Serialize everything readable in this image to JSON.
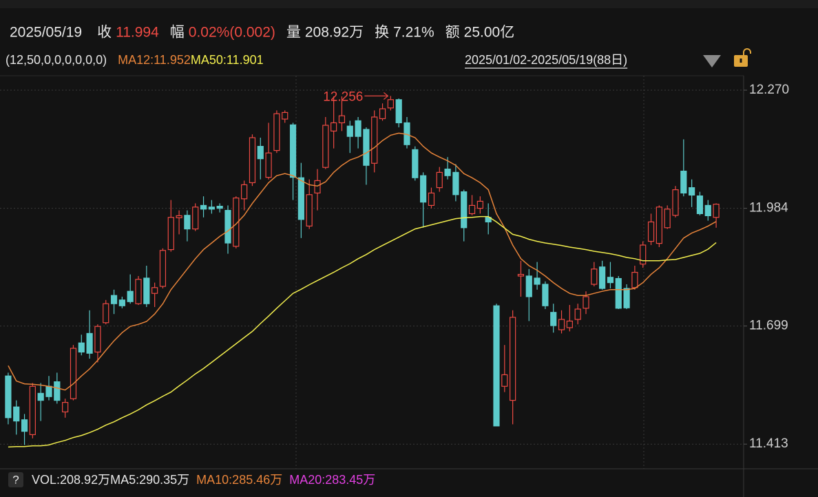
{
  "chart_data": {
    "type": "candlestick",
    "header": {
      "date": "2025/05/19",
      "items": [
        {
          "label": "收",
          "text": "11.994",
          "color": "#ee4a43"
        },
        {
          "label": "幅",
          "text": "0.02%(0.002)",
          "color": "#ee4a43"
        },
        {
          "label": "量",
          "text": "208.92万",
          "color": "#e6e6e6"
        },
        {
          "label": "换",
          "text": "7.21%",
          "color": "#e6e6e6"
        },
        {
          "label": "额",
          "text": "25.00亿",
          "color": "#e6e6e6"
        }
      ]
    },
    "params": "(12,50,0,0,0,0,0,0)",
    "range": "2025/01/02-2025/05/19(88日)",
    "up_color": "#ee4a43",
    "down_color": "#5ccaca",
    "ylim": [
      11.355,
      12.305
    ],
    "yticks": [
      {
        "value": 12.27,
        "label": "12.270"
      },
      11.984,
      11.699,
      11.413
    ],
    "grid": true,
    "open": [
      11.578,
      11.503,
      11.472,
      11.436,
      11.536,
      11.553,
      11.564,
      11.491,
      11.523,
      11.658,
      11.681,
      11.636,
      11.707,
      11.773,
      11.762,
      11.783,
      11.753,
      11.815,
      11.778,
      11.795,
      11.884,
      11.961,
      11.967,
      11.934,
      11.991,
      11.987,
      11.989,
      11.979,
      11.892,
      12.007,
      12.046,
      12.134,
      12.059,
      12.124,
      12.2,
      12.186,
      12.058,
      11.941,
      12.021,
      12.083,
      12.171,
      12.191,
      12.183,
      12.196,
      12.175,
      12.093,
      12.201,
      12.227,
      12.247,
      12.191,
      12.126,
      12.063,
      11.991,
      12.034,
      12.079,
      12.071,
      12.024,
      11.971,
      11.984,
      11.962,
      11.748,
      11.553,
      11.519,
      11.82,
      11.82,
      11.815,
      11.8,
      11.732,
      11.69,
      11.695,
      11.715,
      11.742,
      11.8,
      11.842,
      11.817,
      11.814,
      11.79,
      11.792,
      11.849,
      11.904,
      11.899,
      11.937,
      11.967,
      12.074,
      12.034,
      12.014,
      11.991,
      11.962
    ],
    "high": [
      11.586,
      11.519,
      11.486,
      11.561,
      11.561,
      11.578,
      11.586,
      11.523,
      11.653,
      11.678,
      11.737,
      11.703,
      11.762,
      11.787,
      11.77,
      11.824,
      11.82,
      11.845,
      11.804,
      11.887,
      12.004,
      11.979,
      11.979,
      11.996,
      12.013,
      12.004,
      11.996,
      11.991,
      12.013,
      12.051,
      12.163,
      12.155,
      12.191,
      12.221,
      12.221,
      12.191,
      12.094,
      12.054,
      12.079,
      12.205,
      12.255,
      12.255,
      12.196,
      12.205,
      12.18,
      12.221,
      12.238,
      12.256,
      12.25,
      12.205,
      12.134,
      12.071,
      12.034,
      12.084,
      12.108,
      12.091,
      12.029,
      12.016,
      12.013,
      11.996,
      11.753,
      11.653,
      11.737,
      11.857,
      11.837,
      11.854,
      11.807,
      11.753,
      11.737,
      11.75,
      11.753,
      11.783,
      11.854,
      11.857,
      11.854,
      11.82,
      11.8,
      11.845,
      11.904,
      11.971,
      11.991,
      11.991,
      12.038,
      12.151,
      12.054,
      12.024,
      12.004,
      11.996
    ],
    "low": [
      11.461,
      11.436,
      11.411,
      11.427,
      11.469,
      11.519,
      11.511,
      11.477,
      11.519,
      11.628,
      11.62,
      11.611,
      11.703,
      11.728,
      11.742,
      11.753,
      11.75,
      11.745,
      11.745,
      11.79,
      11.879,
      11.921,
      11.904,
      11.929,
      11.962,
      11.971,
      11.974,
      11.874,
      11.887,
      11.979,
      12.038,
      12.054,
      12.054,
      12.118,
      12.191,
      12.004,
      11.912,
      11.934,
      11.979,
      12.079,
      12.129,
      12.171,
      12.118,
      12.129,
      12.041,
      12.071,
      12.196,
      12.221,
      12.18,
      12.129,
      12.051,
      11.937,
      11.984,
      12.024,
      12.054,
      12.001,
      11.904,
      11.967,
      11.971,
      11.921,
      11.457,
      11.539,
      11.461,
      11.77,
      11.711,
      11.787,
      11.74,
      11.683,
      11.681,
      11.686,
      11.703,
      11.728,
      11.795,
      11.787,
      11.79,
      11.74,
      11.74,
      11.787,
      11.84,
      11.895,
      11.89,
      11.934,
      11.962,
      12.013,
      11.987,
      11.967,
      11.954,
      11.937
    ],
    "close": [
      11.477,
      11.469,
      11.444,
      11.553,
      11.519,
      11.528,
      11.519,
      11.514,
      11.645,
      11.636,
      11.633,
      11.698,
      11.753,
      11.753,
      11.748,
      11.758,
      11.812,
      11.753,
      11.792,
      11.882,
      11.962,
      11.966,
      11.934,
      11.987,
      11.982,
      11.982,
      11.984,
      11.9,
      12.009,
      12.041,
      12.155,
      12.104,
      12.118,
      12.213,
      12.216,
      12.059,
      11.957,
      12.017,
      12.051,
      12.185,
      12.191,
      12.208,
      12.158,
      12.158,
      12.088,
      12.205,
      12.225,
      12.247,
      12.191,
      12.138,
      12.058,
      11.999,
      12.021,
      12.071,
      12.063,
      12.017,
      11.937,
      11.991,
      12.001,
      11.951,
      11.457,
      11.581,
      11.72,
      11.824,
      11.77,
      11.8,
      11.748,
      11.7,
      11.715,
      11.711,
      11.74,
      11.77,
      11.837,
      11.79,
      11.804,
      11.742,
      11.743,
      11.829,
      11.895,
      11.951,
      11.987,
      11.982,
      12.029,
      12.021,
      12.016,
      11.971,
      11.966,
      11.994
    ],
    "high_label": 12.256,
    "series": [
      {
        "name": "MA12:11.952",
        "color": "#e8843a",
        "values": [
          11.603,
          11.566,
          11.559,
          11.558,
          11.556,
          11.553,
          11.549,
          11.544,
          11.559,
          11.578,
          11.595,
          11.616,
          11.64,
          11.663,
          11.683,
          11.698,
          11.703,
          11.71,
          11.728,
          11.753,
          11.787,
          11.812,
          11.837,
          11.862,
          11.884,
          11.9,
          11.916,
          11.929,
          11.946,
          11.967,
          11.996,
          12.021,
          12.046,
          12.063,
          12.068,
          12.063,
          12.051,
          12.041,
          12.038,
          12.048,
          12.071,
          12.088,
          12.101,
          12.108,
          12.118,
          12.131,
          12.148,
          12.161,
          12.166,
          12.163,
          12.155,
          12.134,
          12.118,
          12.108,
          12.099,
          12.088,
          12.068,
          12.058,
          12.046,
          12.029,
          11.971,
          11.937,
          11.895,
          11.862,
          11.845,
          11.834,
          11.82,
          11.804,
          11.79,
          11.778,
          11.773,
          11.773,
          11.778,
          11.783,
          11.787,
          11.787,
          11.787,
          11.79,
          11.804,
          11.824,
          11.84,
          11.862,
          11.887,
          11.912,
          11.924,
          11.932,
          11.941,
          11.952
        ]
      },
      {
        "name": "MA50:11.901",
        "color": "#f2ee4e",
        "values": [
          11.406,
          11.407,
          11.407,
          11.409,
          11.409,
          11.411,
          11.417,
          11.422,
          11.429,
          11.434,
          11.441,
          11.449,
          11.459,
          11.467,
          11.477,
          11.486,
          11.496,
          11.508,
          11.518,
          11.529,
          11.539,
          11.554,
          11.568,
          11.583,
          11.596,
          11.611,
          11.626,
          11.641,
          11.656,
          11.671,
          11.686,
          11.705,
          11.723,
          11.742,
          11.76,
          11.778,
          11.788,
          11.799,
          11.809,
          11.819,
          11.829,
          11.84,
          11.85,
          11.862,
          11.872,
          11.884,
          11.894,
          11.904,
          11.914,
          11.924,
          11.934,
          11.939,
          11.944,
          11.949,
          11.954,
          11.959,
          11.961,
          11.962,
          11.964,
          11.964,
          11.951,
          11.936,
          11.921,
          11.916,
          11.909,
          11.904,
          11.9,
          11.897,
          11.894,
          11.89,
          11.887,
          11.884,
          11.88,
          11.877,
          11.874,
          11.87,
          11.865,
          11.862,
          11.857,
          11.857,
          11.857,
          11.859,
          11.86,
          11.865,
          11.87,
          11.875,
          11.885,
          11.901
        ]
      }
    ],
    "volume_help": "?",
    "volume_legend": [
      {
        "text": "VOL:208.92万",
        "color": "#e6e6e6"
      },
      {
        "text": "MA5:290.35万",
        "color": "#e6e6e6"
      },
      {
        "text": "MA10:285.46万",
        "color": "#e8843a"
      },
      {
        "text": "MA20:283.45万",
        "color": "#e040e0"
      }
    ]
  }
}
